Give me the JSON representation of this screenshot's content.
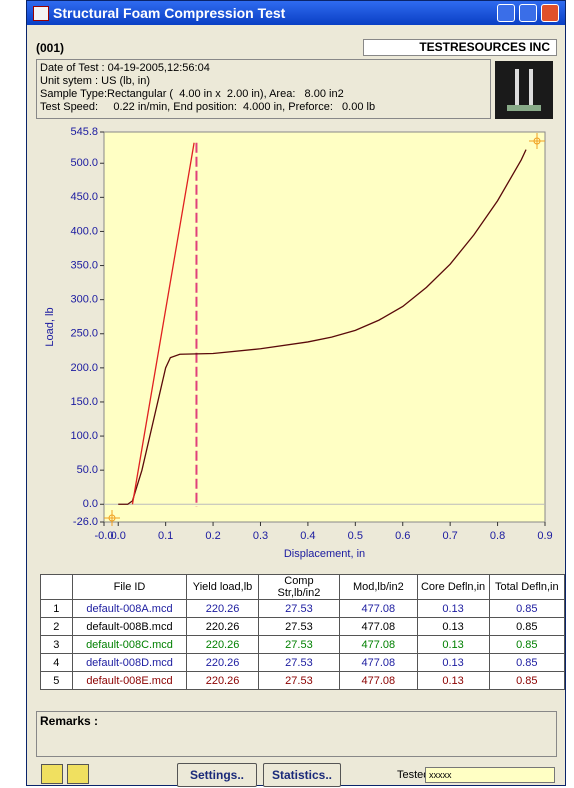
{
  "window": {
    "title": "Structural Foam Compression Test"
  },
  "header": {
    "id": "(001)",
    "company": "TESTRESOURCES INC",
    "info": [
      "Date of Test : 04-19-2005,12:56:04",
      "Unit sytem : US (lb, in)",
      "Sample Type:Rectangular (  4.00 in x  2.00 in), Area:   8.00 in2",
      "Test Speed:     0.22 in/min, End position:  4.000 in, Preforce:   0.00 lb"
    ]
  },
  "chart_data": {
    "type": "line",
    "x_label": "Displacement, in",
    "y_label": "Load, lb",
    "xlim": [
      -0.03,
      0.9
    ],
    "ylim": [
      -26,
      545.8
    ],
    "xticks": [
      {
        "value": -0.03,
        "label": "-0.0"
      },
      {
        "value": 0,
        "label": "0.0"
      },
      0.1,
      0.2,
      0.3,
      0.4,
      0.5,
      0.6,
      0.7,
      0.8,
      0.9
    ],
    "yticks": [
      {
        "value": -26,
        "label": "-26.0"
      },
      {
        "value": 0,
        "label": "0.0"
      },
      {
        "value": 50,
        "label": "50.0"
      },
      {
        "value": 100,
        "label": "100.0"
      },
      {
        "value": 150,
        "label": "150.0"
      },
      {
        "value": 200,
        "label": "200.0"
      },
      {
        "value": 250,
        "label": "250.0"
      },
      {
        "value": 300,
        "label": "300.0"
      },
      {
        "value": 350,
        "label": "350.0"
      },
      {
        "value": 400,
        "label": "400.0"
      },
      {
        "value": 450,
        "label": "450.0"
      },
      {
        "value": 500,
        "label": "500.0"
      },
      545.8
    ],
    "background": "#ffffc4",
    "yield_line_x": 0.165,
    "yield_line_color": "#e0407a",
    "series": [
      {
        "color": "#5a0a0a",
        "x": [
          0.0,
          0.02,
          0.03,
          0.05,
          0.07,
          0.09,
          0.1,
          0.11,
          0.13,
          0.2,
          0.3,
          0.4,
          0.45,
          0.5,
          0.55,
          0.6,
          0.65,
          0.7,
          0.75,
          0.8,
          0.85,
          0.86
        ],
        "values": [
          0,
          0,
          5,
          50,
          110,
          170,
          200,
          215,
          220,
          221,
          228,
          238,
          245,
          255,
          270,
          290,
          318,
          352,
          395,
          445,
          505,
          520
        ]
      },
      {
        "color": "#e02020",
        "x": [
          0.03,
          0.16
        ],
        "values": [
          0,
          530
        ]
      }
    ]
  },
  "table": {
    "header": [
      "File ID",
      "Yield load,lb",
      "Comp Str,lb/in2",
      "Mod,lb/in2",
      "Core Defln,in",
      "Total Defln,in"
    ],
    "row_colors": [
      "#1c1ca0",
      "#000000",
      "#008000",
      "#1c1ca0",
      "#8b0000"
    ],
    "rows": [
      [
        "1",
        "default-008A.mcd",
        "220.26",
        "27.53",
        "477.08",
        "0.13",
        "0.85"
      ],
      [
        "2",
        "default-008B.mcd",
        "220.26",
        "27.53",
        "477.08",
        "0.13",
        "0.85"
      ],
      [
        "3",
        "default-008C.mcd",
        "220.26",
        "27.53",
        "477.08",
        "0.13",
        "0.85"
      ],
      [
        "4",
        "default-008D.mcd",
        "220.26",
        "27.53",
        "477.08",
        "0.13",
        "0.85"
      ],
      [
        "5",
        "default-008E.mcd",
        "220.26",
        "27.53",
        "477.08",
        "0.13",
        "0.85"
      ]
    ]
  },
  "remarks": {
    "label": "Remarks :"
  },
  "footer": {
    "settings": "Settings..",
    "statistics": "Statistics..",
    "tested_by_label": "Tested by:",
    "tested_by": "xxxxx"
  }
}
